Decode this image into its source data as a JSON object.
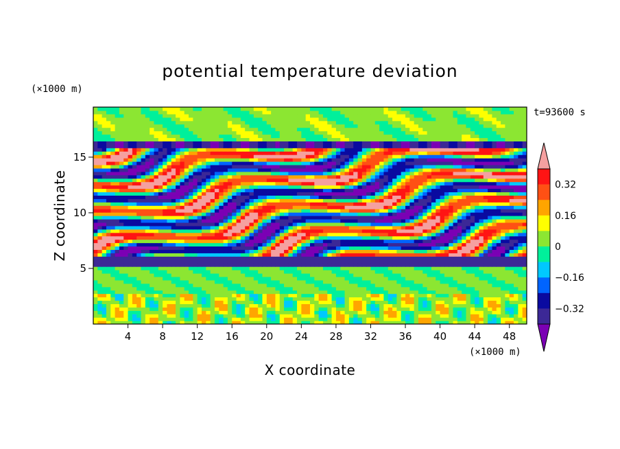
{
  "chart_data": {
    "type": "heatmap",
    "title": "potential temperature deviation",
    "xlabel": "X coordinate",
    "ylabel": "Z coordinate",
    "x_unit": "(×1000 m)",
    "y_unit": "(×1000 m)",
    "time_label": "t=93600 s",
    "xlim": [
      0,
      50
    ],
    "ylim": [
      0,
      19.5
    ],
    "x_ticks": [
      4,
      8,
      12,
      16,
      20,
      24,
      28,
      32,
      36,
      40,
      44,
      48
    ],
    "x_tick_labels": [
      "4",
      "8",
      "12",
      "16",
      "20",
      "24",
      "28",
      "32",
      "36",
      "40",
      "44",
      "48"
    ],
    "y_ticks": [
      5,
      10,
      15
    ],
    "y_tick_labels": [
      "5",
      "10",
      "15"
    ],
    "colorbar": {
      "levels": [
        -0.4,
        -0.32,
        -0.24,
        -0.16,
        -0.08,
        0,
        0.08,
        0.16,
        0.24,
        0.32,
        0.4
      ],
      "labeled_levels": [
        0.32,
        0.16,
        0,
        -0.16,
        -0.32
      ],
      "labels": [
        "0.32",
        "0.16",
        "0",
        "−0.16",
        "−0.32"
      ],
      "colors": [
        "#7b00b4",
        "#3c2896",
        "#0a0aa0",
        "#0064ff",
        "#00c8ff",
        "#00f09b",
        "#8ce632",
        "#ffff00",
        "#ffa500",
        "#ff5014",
        "#ff1414",
        "#f5a0a0"
      ],
      "extend": "both"
    }
  }
}
